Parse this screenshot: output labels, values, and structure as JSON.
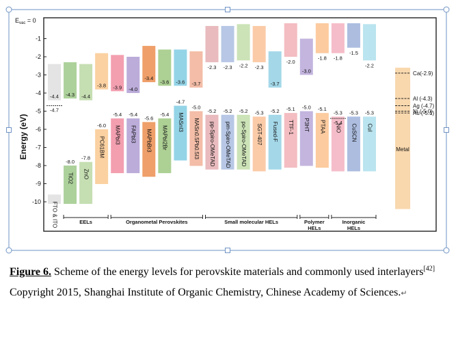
{
  "chart_data": {
    "type": "bar",
    "yaxis_top_label": "E",
    "yaxis_top_label_sub": "vac",
    "yaxis_top_label_suffix": "= 0",
    "ylabel": "Energy (eV)",
    "ylim": [
      -10.6,
      0
    ],
    "yticks": [
      -1,
      -2,
      -3,
      -4,
      -5,
      -6,
      -7,
      -8,
      -9,
      -10
    ],
    "materials": [
      {
        "name": "FTO & ITO",
        "top": -4.4,
        "bottom": -9.6,
        "color": "#e3e3e3",
        "top_label": "-4.4",
        "extra_label": "-4.7",
        "group": 0
      },
      {
        "name": "TiO2",
        "top": -4.3,
        "bottom": -8.0,
        "color": "#a9cf96",
        "top_label": "-4.3",
        "bottom_label": "-8.0",
        "group": 1
      },
      {
        "name": "ZnO",
        "top": -4.4,
        "bottom": -7.8,
        "color": "#c2dcae",
        "top_label": "-4.4",
        "bottom_label": "-7.8",
        "group": 1
      },
      {
        "name": "PC61BM",
        "top": -3.8,
        "bottom": -6.0,
        "color": "#fbcf9c",
        "top_label": "-3.8",
        "bottom_label": "-6.0",
        "group": 1
      },
      {
        "name": "MAPbI3",
        "top": -3.9,
        "bottom": -5.4,
        "color": "#f29aac",
        "top_label": "-3.9",
        "bottom_label": "-5.4",
        "group": 2
      },
      {
        "name": "FAPbI3",
        "top": -4.0,
        "bottom": -5.4,
        "color": "#b7a8d8",
        "top_label": "-4.0",
        "bottom_label": "-5.4",
        "group": 2
      },
      {
        "name": "MAPbBr3",
        "top": -3.4,
        "bottom": -5.6,
        "color": "#ee9a61",
        "top_label": "-3.4",
        "bottom_label": "-5.6",
        "group": 2
      },
      {
        "name": "MAPbI2Br",
        "top": -3.6,
        "bottom": -5.4,
        "color": "#a9ce8e",
        "top_label": "-3.6",
        "bottom_label": "-5.4",
        "group": 2
      },
      {
        "name": "MASnI3",
        "top": -3.6,
        "bottom": -4.7,
        "color": "#8ed2e6",
        "top_label": "-3.6",
        "bottom_label": "-4.7",
        "group": 2
      },
      {
        "name": "MASn0.5Pb0.5I3",
        "top": -3.7,
        "bottom": -5.0,
        "color": "#f2b9a2",
        "top_label": "-3.7",
        "bottom_label": "-5.0",
        "group": 2
      },
      {
        "name": "pp-Spiro-OMeTAD",
        "top": -2.3,
        "bottom": -5.2,
        "color": "#e8b7bb",
        "top_label": "-2.3",
        "bottom_label": "-5.2",
        "group": 3
      },
      {
        "name": "pm-Spiro-OMeTAD",
        "top": -2.3,
        "bottom": -5.2,
        "color": "#b3c4e4",
        "top_label": "-2.3",
        "bottom_label": "-5.2",
        "group": 3
      },
      {
        "name": "po-Spiro-OMeTAD",
        "top": -2.2,
        "bottom": -5.2,
        "color": "#c9e1b3",
        "top_label": "-2.2",
        "bottom_label": "-5.2",
        "group": 3
      },
      {
        "name": "SGT-407",
        "top": -2.3,
        "bottom": -5.3,
        "color": "#fbc8a3",
        "top_label": "-2.3",
        "bottom_label": "-5.3",
        "group": 3
      },
      {
        "name": "Fused-F",
        "top": -3.7,
        "bottom": -5.2,
        "color": "#9fd6e8",
        "top_label": "-3.7",
        "bottom_label": "-5.2",
        "group": 3
      },
      {
        "name": "TTF-1",
        "top": -2.0,
        "bottom": -5.1,
        "color": "#f2b9be",
        "top_label": "-2.0",
        "bottom_label": "-5.1",
        "group": 3
      },
      {
        "name": "P3HT",
        "top": -3.0,
        "bottom": -5.0,
        "color": "#c0b1dc",
        "top_label": "-3.0",
        "bottom_label": "-5.0",
        "group": 4
      },
      {
        "name": "PTAA",
        "top": -1.8,
        "bottom": -5.1,
        "color": "#fcc89a",
        "top_label": "-1.8",
        "bottom_label": "-5.1",
        "group": 4
      },
      {
        "name": "NiO",
        "top": -1.8,
        "bottom": -5.3,
        "color": "#f4b9c6",
        "top_label": "-1.8",
        "bottom_label": "-5.3",
        "extra_label": "-5.4",
        "group": 5
      },
      {
        "name": "CuSCN",
        "top": -1.5,
        "bottom": -5.3,
        "color": "#a8b9de",
        "top_label": "-1.5",
        "bottom_label": "-5.3",
        "group": 5
      },
      {
        "name": "CuI",
        "top": -2.2,
        "bottom": -5.3,
        "color": "#b6e3ee",
        "top_label": "-2.2",
        "bottom_label": "-5.3",
        "group": 5
      }
    ],
    "metal": {
      "name": "Metal",
      "color": "#f9d8ae",
      "levels": [
        {
          "name": "Ca",
          "value": -2.9,
          "label": "Ca(-2.9)"
        },
        {
          "name": "Al",
          "value": -4.3,
          "label": "Al (-4.3)"
        },
        {
          "name": "Ag",
          "value": -4.7,
          "label": "Ag (-4.7)"
        },
        {
          "name": "Ni",
          "value": -5.0,
          "label": "Ni (-5.0)"
        },
        {
          "name": "Au",
          "value": -5.1,
          "label": "Au (-5.1)"
        }
      ]
    },
    "groups": [
      {
        "label": "EELs"
      },
      {
        "label": "Organometal Perovskites"
      },
      {
        "label": "Small molecular HELs"
      },
      {
        "label": "Polymer",
        "label2": "HELs"
      },
      {
        "label": "Inorganic",
        "label2": "HELs"
      }
    ]
  },
  "caption": {
    "figure_label": "Figure 6.",
    "text1": " Scheme of the energy levels for perovskite materials and commonly used interlayers",
    "ref": "[42]",
    "text2": " Copyright 2015, Shanghai Institute of Organic Chemistry, Chinese Academy of Sciences.",
    "end_mark": "↵"
  }
}
